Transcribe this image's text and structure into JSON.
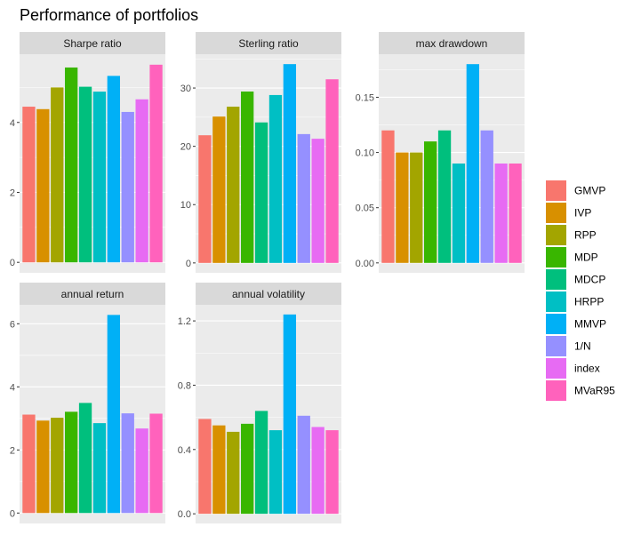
{
  "chart_data": {
    "type": "bar",
    "title": "Performance of portfolios",
    "categories": [
      "GMVP",
      "IVP",
      "RPP",
      "MDP",
      "MDCP",
      "HRPP",
      "MMVP",
      "1/N",
      "index",
      "MVaR95"
    ],
    "colors": [
      "#F8766D",
      "#D89000",
      "#A3A500",
      "#39B600",
      "#00BF7D",
      "#00BFC4",
      "#00B0F6",
      "#9590FF",
      "#E76BF3",
      "#FF62BC"
    ],
    "legend": {
      "position": "right"
    },
    "grid": true,
    "panels": [
      {
        "name": "Sharpe ratio",
        "values": [
          4.45,
          4.38,
          5.0,
          5.57,
          5.02,
          4.88,
          5.33,
          4.3,
          4.66,
          5.65
        ],
        "ylim": [
          -0.3,
          5.95
        ],
        "yticks": [
          0,
          2,
          4
        ],
        "ytick_labels": [
          "0",
          "2",
          "4"
        ]
      },
      {
        "name": "Sterling ratio",
        "values": [
          21.9,
          25.1,
          26.8,
          29.4,
          24.1,
          28.8,
          34.1,
          22.1,
          21.3,
          31.5
        ],
        "ylim": [
          -1.7,
          35.8
        ],
        "yticks": [
          0,
          10,
          20,
          30
        ],
        "ytick_labels": [
          "0",
          "10",
          "20",
          "30"
        ]
      },
      {
        "name": "max drawdown",
        "values": [
          0.12,
          0.1,
          0.1,
          0.11,
          0.12,
          0.09,
          0.18,
          0.12,
          0.09,
          0.09
        ],
        "ylim": [
          -0.009,
          0.189
        ],
        "yticks": [
          0,
          0.05,
          0.1,
          0.15
        ],
        "ytick_labels": [
          "0.00",
          "0.05",
          "0.10",
          "0.15"
        ]
      },
      {
        "name": "annual return",
        "values": [
          3.12,
          2.93,
          3.02,
          3.21,
          3.49,
          2.85,
          6.28,
          3.16,
          2.68,
          3.15
        ],
        "ylim": [
          -0.33,
          6.6
        ],
        "yticks": [
          0,
          2,
          4,
          6
        ],
        "ytick_labels": [
          "0",
          "2",
          "4",
          "6"
        ]
      },
      {
        "name": "annual volatility",
        "values": [
          0.59,
          0.55,
          0.51,
          0.56,
          0.64,
          0.52,
          1.24,
          0.61,
          0.54,
          0.52
        ],
        "ylim": [
          -0.06,
          1.3
        ],
        "yticks": [
          0,
          0.4,
          0.8,
          1.2
        ],
        "ytick_labels": [
          "0.0",
          "0.4",
          "0.8",
          "1.2"
        ]
      }
    ]
  }
}
